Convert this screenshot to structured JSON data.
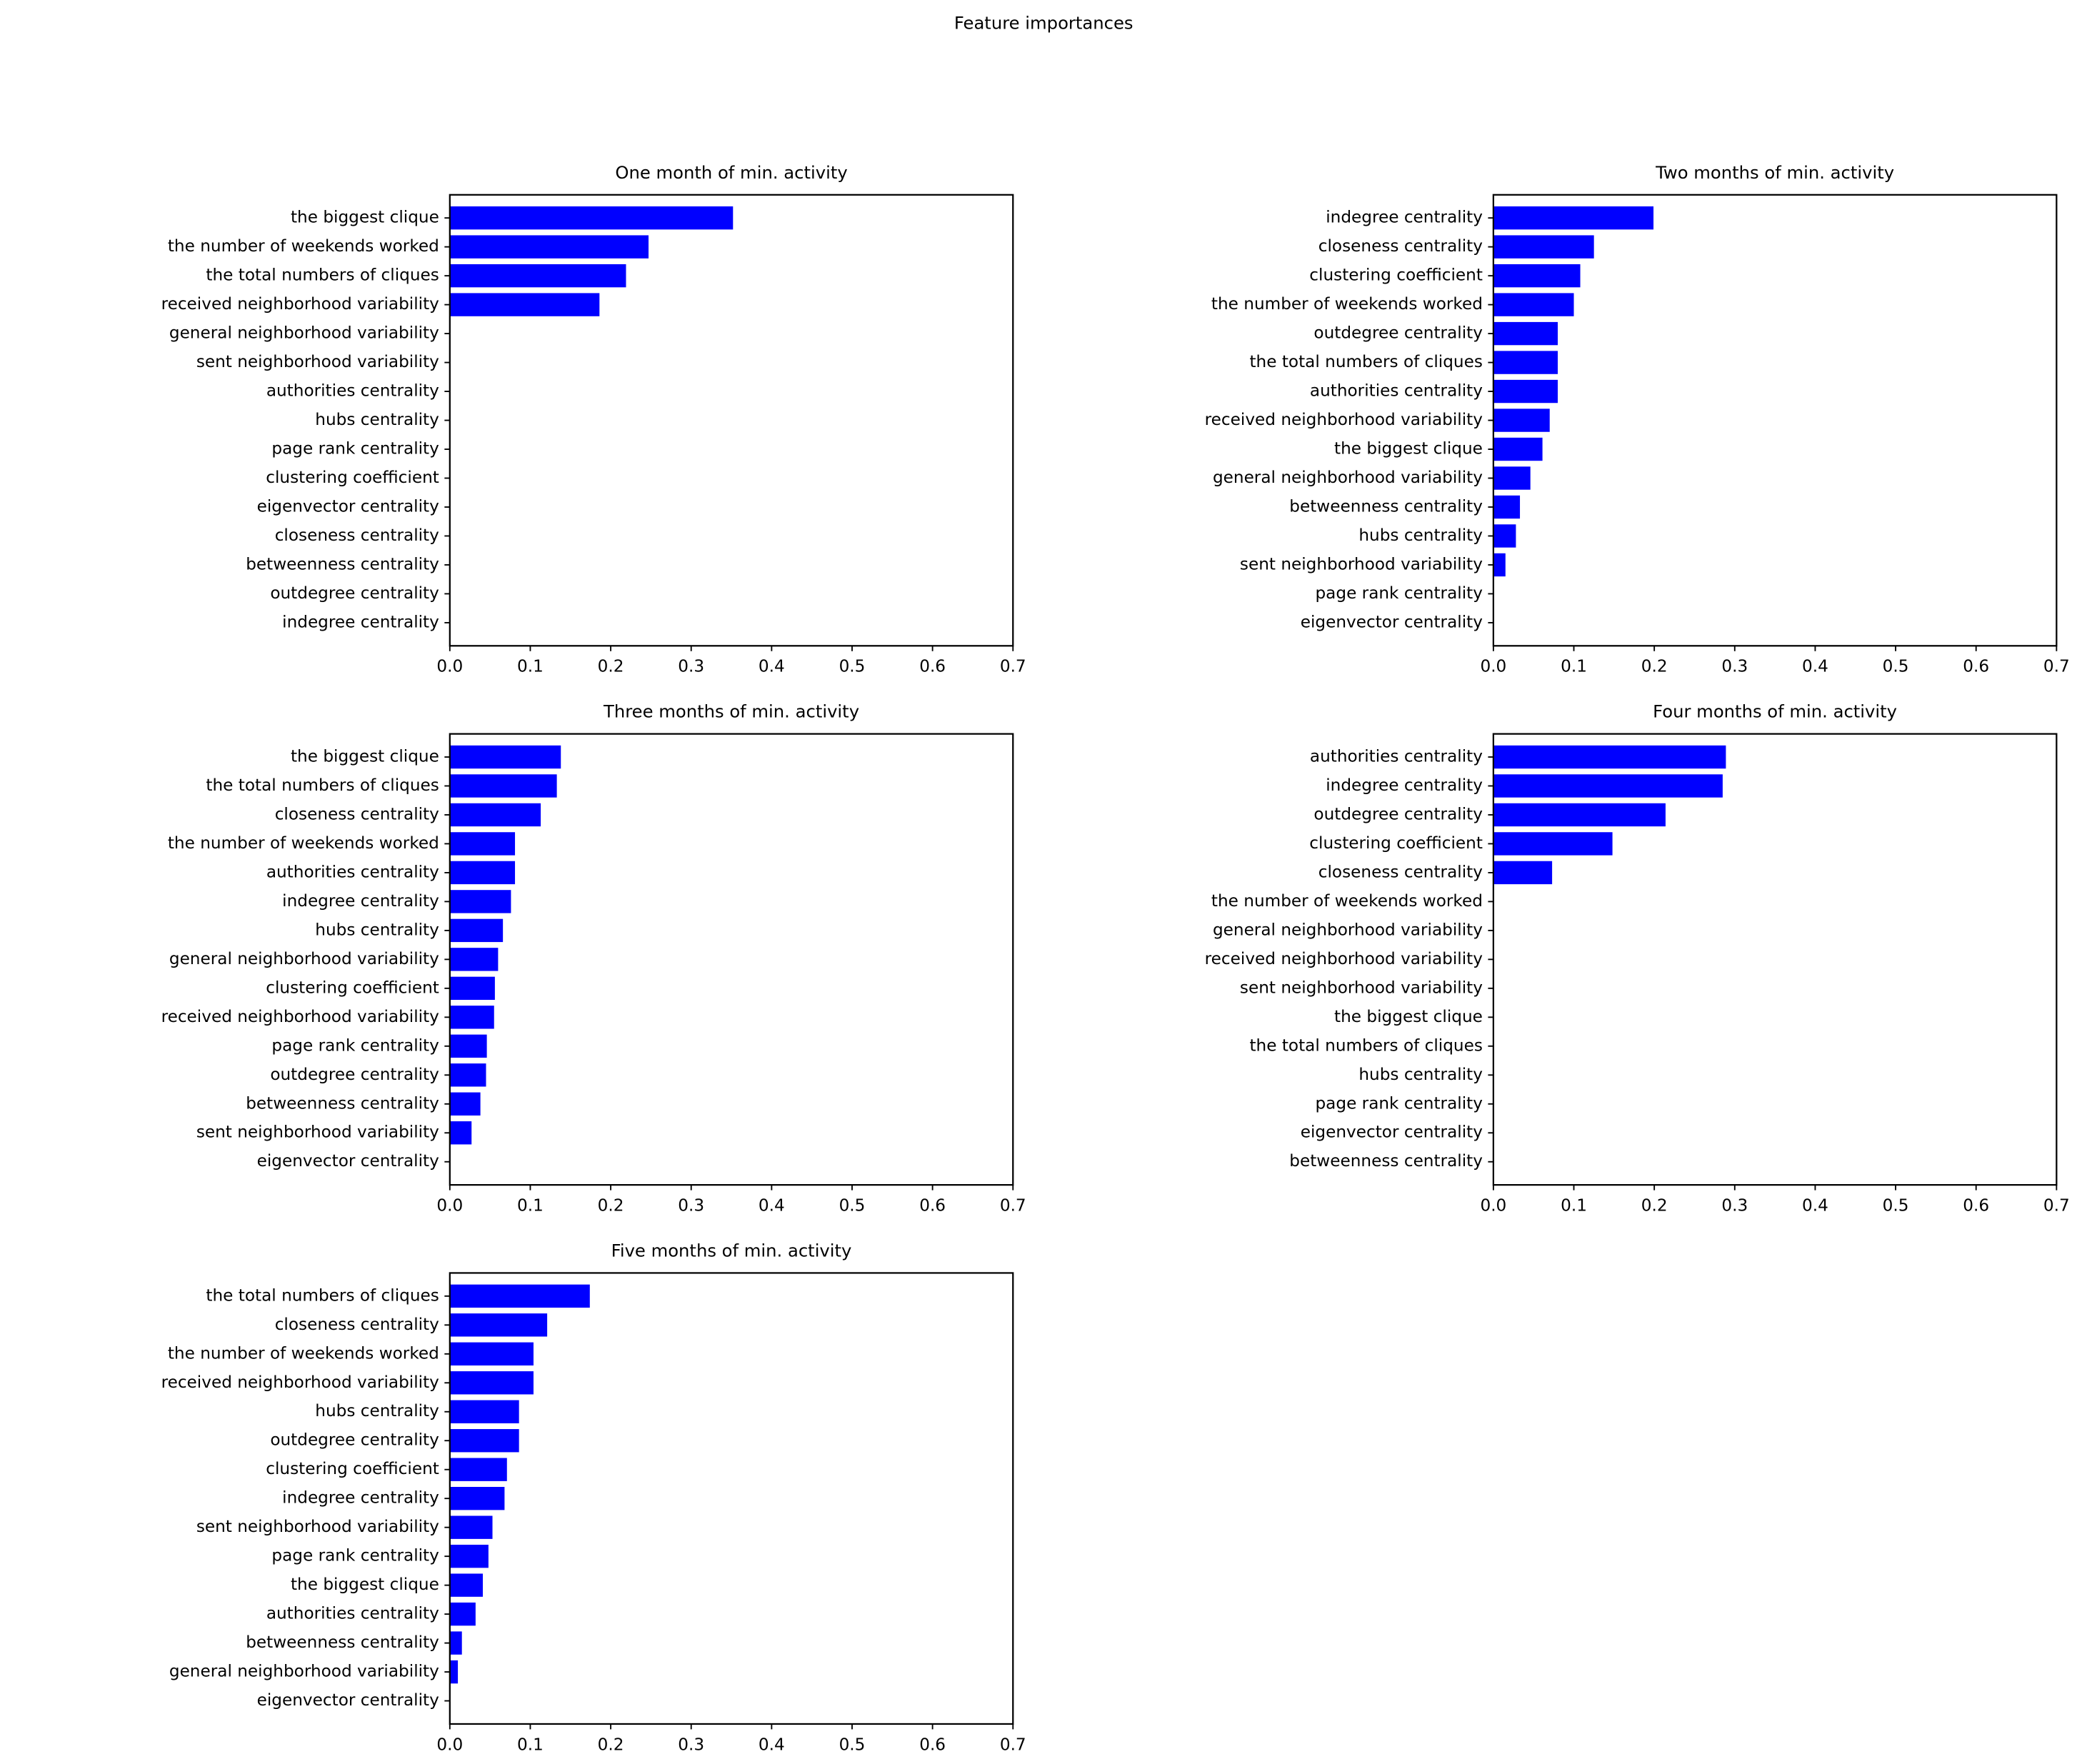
{
  "title": "Feature importances",
  "chart_data": [
    {
      "type": "bar",
      "orientation": "horizontal",
      "title": "One month of min. activity",
      "color": "#0000ff",
      "categories": [
        "the biggest clique",
        "the number of weekends worked",
        "the total numbers of cliques",
        "received neighborhood variability",
        "general neighborhood variability",
        "sent neighborhood variability",
        "authorities centrality",
        "hubs centrality",
        "page rank centrality",
        "clustering coefficient",
        "eigenvector centrality",
        "closeness centrality",
        "betweenness centrality",
        "outdegree centrality",
        "indegree centrality"
      ],
      "values": [
        0.352,
        0.247,
        0.219,
        0.186,
        0,
        0,
        0,
        0,
        0,
        0,
        0,
        0,
        0,
        0,
        0
      ],
      "xlim": [
        0,
        0.7
      ],
      "xticks": [
        {
          "value": 0,
          "label": "0.0"
        },
        0.1,
        0.2,
        0.3,
        0.4,
        0.5,
        0.6,
        0.7
      ]
    },
    {
      "type": "bar",
      "orientation": "horizontal",
      "title": "Two months of min. activity",
      "color": "#0000ff",
      "categories": [
        "indegree centrality",
        "closeness centrality",
        "clustering coefficient",
        "the number of weekends worked",
        "outdegree centrality",
        "the total numbers of cliques",
        "authorities centrality",
        "received neighborhood variability",
        "the biggest clique",
        "general neighborhood variability",
        "betweenness centrality",
        "hubs centrality",
        "sent neighborhood variability",
        "page rank centrality",
        "eigenvector centrality"
      ],
      "values": [
        0.199,
        0.125,
        0.108,
        0.1,
        0.08,
        0.08,
        0.08,
        0.07,
        0.061,
        0.046,
        0.033,
        0.028,
        0.015,
        0,
        0
      ],
      "xlim": [
        0,
        0.7
      ],
      "xticks": [
        {
          "value": 0,
          "label": "0.0"
        },
        0.1,
        0.2,
        0.3,
        0.4,
        0.5,
        0.6,
        0.7
      ]
    },
    {
      "type": "bar",
      "orientation": "horizontal",
      "title": "Three months of min. activity",
      "color": "#0000ff",
      "categories": [
        "the biggest clique",
        "the total numbers of cliques",
        "closeness centrality",
        "the number of weekends worked",
        "authorities centrality",
        "indegree centrality",
        "hubs centrality",
        "general neighborhood variability",
        "clustering coefficient",
        "received neighborhood variability",
        "page rank centrality",
        "outdegree centrality",
        "betweenness centrality",
        "sent neighborhood variability",
        "eigenvector centrality"
      ],
      "values": [
        0.138,
        0.133,
        0.113,
        0.081,
        0.081,
        0.076,
        0.066,
        0.06,
        0.056,
        0.055,
        0.046,
        0.045,
        0.038,
        0.027,
        0
      ],
      "xlim": [
        0,
        0.7
      ],
      "xticks": [
        {
          "value": 0,
          "label": "0.0"
        },
        0.1,
        0.2,
        0.3,
        0.4,
        0.5,
        0.6,
        0.7
      ]
    },
    {
      "type": "bar",
      "orientation": "horizontal",
      "title": "Four months of min. activity",
      "color": "#0000ff",
      "categories": [
        "authorities centrality",
        "indegree centrality",
        "outdegree centrality",
        "clustering coefficient",
        "closeness centrality",
        "the number of weekends worked",
        "general neighborhood variability",
        "received neighborhood variability",
        "sent neighborhood variability",
        "the biggest clique",
        "the total numbers of cliques",
        "hubs centrality",
        "page rank centrality",
        "eigenvector centrality",
        "betweenness centrality"
      ],
      "values": [
        0.289,
        0.285,
        0.214,
        0.148,
        0.073,
        0,
        0,
        0,
        0,
        0,
        0,
        0,
        0,
        0,
        0
      ],
      "xlim": [
        0,
        0.7
      ],
      "xticks": [
        {
          "value": 0,
          "label": "0.0"
        },
        0.1,
        0.2,
        0.3,
        0.4,
        0.5,
        0.6,
        0.7
      ]
    },
    {
      "type": "bar",
      "orientation": "horizontal",
      "title": "Five months of min. activity",
      "color": "#0000ff",
      "categories": [
        "the total numbers of cliques",
        "closeness centrality",
        "the number of weekends worked",
        "received neighborhood variability",
        "hubs centrality",
        "outdegree centrality",
        "clustering coefficient",
        "indegree centrality",
        "sent neighborhood variability",
        "page rank centrality",
        "the biggest clique",
        "authorities centrality",
        "betweenness centrality",
        "general neighborhood variability",
        "eigenvector centrality"
      ],
      "values": [
        0.174,
        0.121,
        0.104,
        0.104,
        0.086,
        0.086,
        0.071,
        0.068,
        0.053,
        0.048,
        0.041,
        0.032,
        0.015,
        0.01,
        0
      ],
      "xlim": [
        0,
        0.7
      ],
      "xticks": [
        {
          "value": 0,
          "label": "0.0"
        },
        0.1,
        0.2,
        0.3,
        0.4,
        0.5,
        0.6,
        0.7
      ]
    }
  ]
}
